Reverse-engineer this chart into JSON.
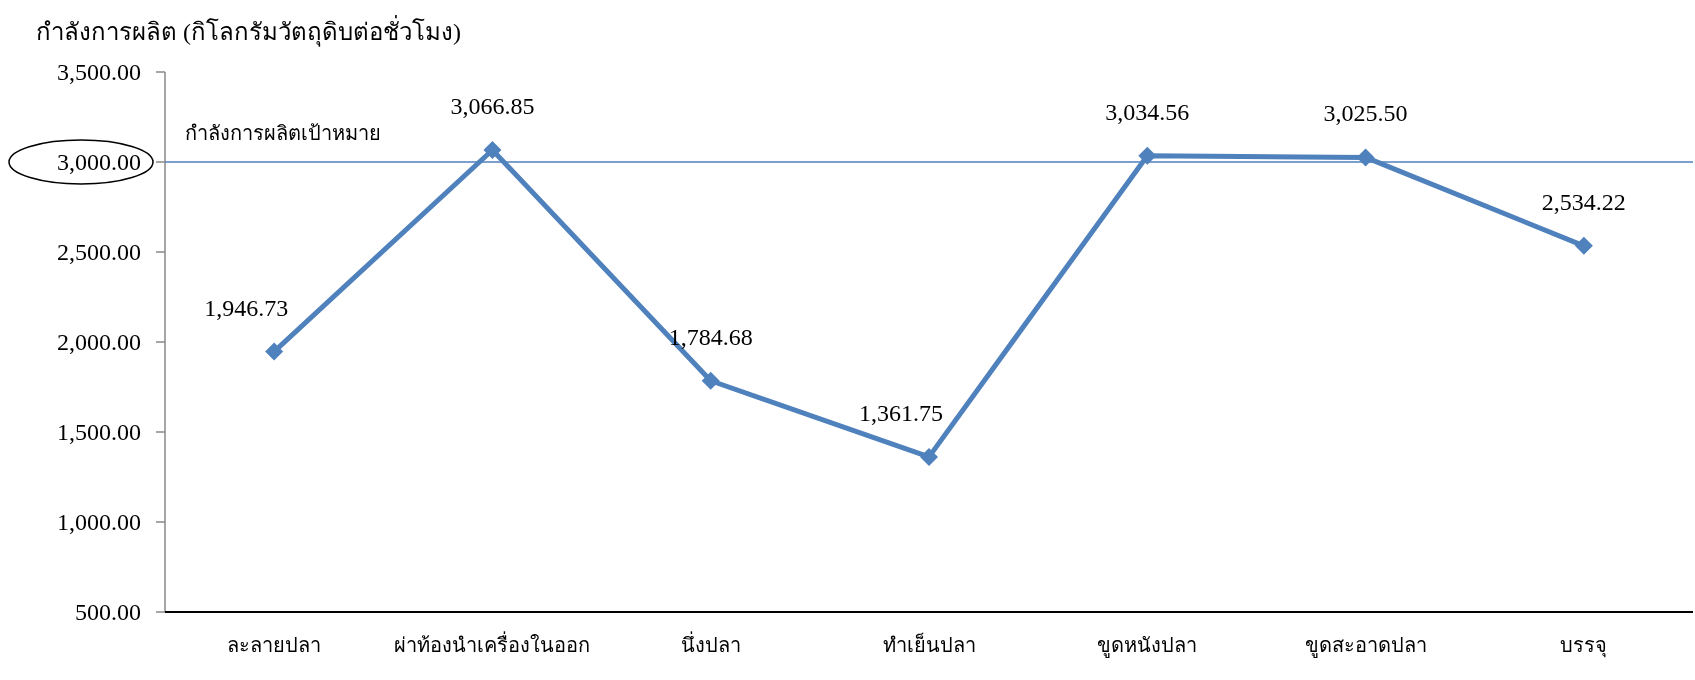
{
  "chart_data": {
    "type": "line",
    "ylabel": "กำลังการผลิต (กิโลกรัมวัตถุดิบต่อชั่วโมง)",
    "categories": [
      "ละลายปลา",
      "ผ่าท้องนำเครื่องในออก",
      "นึ่งปลา",
      "ทำเย็นปลา",
      "ขูดหนังปลา",
      "ขูดสะอาดปลา",
      "บรรจุ"
    ],
    "series": [
      {
        "color": "#4f81bd",
        "values": [
          1946.73,
          3066.85,
          1784.68,
          1361.75,
          3034.56,
          3025.5,
          2534.22
        ]
      }
    ],
    "value_labels": [
      "1,946.73",
      "3,066.85",
      "1,784.68",
      "1,361.75",
      "3,034.56",
      "3,025.50",
      "2,534.22"
    ],
    "ylim": [
      500,
      3500
    ],
    "yticks": [
      {
        "value": 500,
        "label": "500.00"
      },
      {
        "value": 1000,
        "label": "1,000.00"
      },
      {
        "value": 1500,
        "label": "1,500.00"
      },
      {
        "value": 2000,
        "label": "2,000.00"
      },
      {
        "value": 2500,
        "label": "2,500.00"
      },
      {
        "value": 3000,
        "label": "3,000.00"
      },
      {
        "value": 3500,
        "label": "3,500.00"
      }
    ],
    "ref_lines": [
      {
        "axis": "y",
        "value": 3000,
        "label": "กำลังการผลิตเป้าหมาย",
        "color": "#4f81bd",
        "line_style": "solid"
      }
    ],
    "marker": "diamond",
    "line_style": "solid",
    "grid": false
  }
}
